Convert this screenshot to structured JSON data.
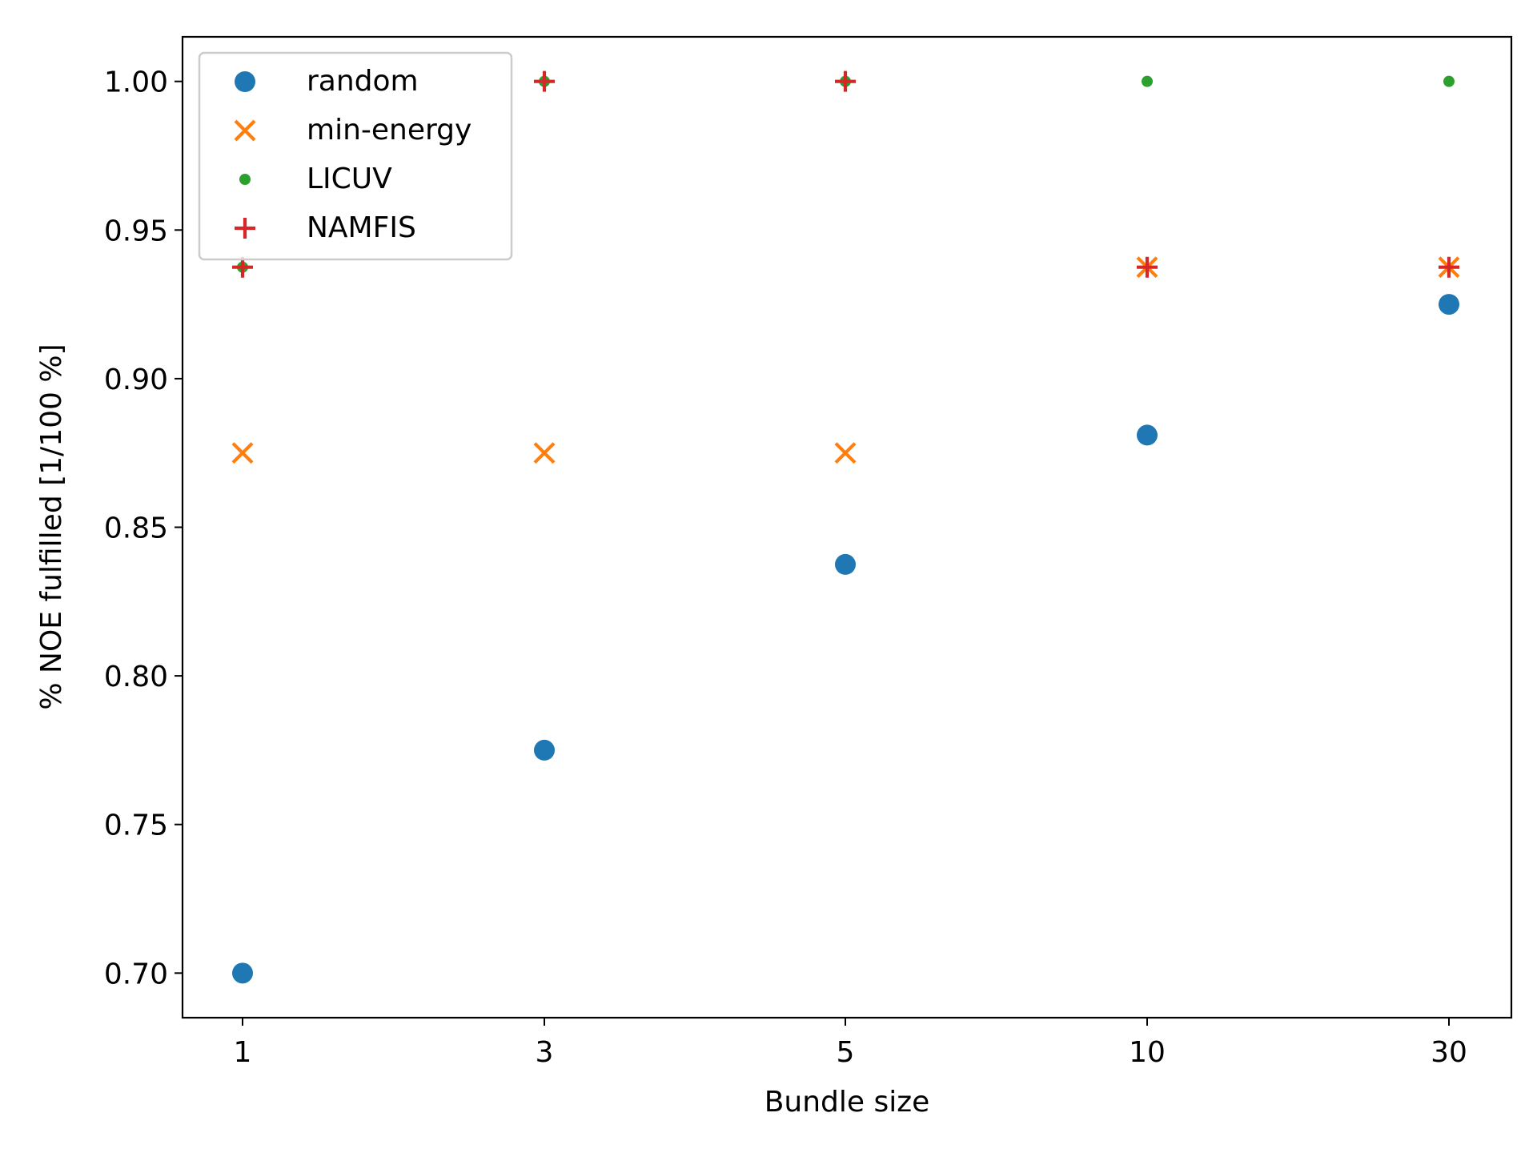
{
  "chart_data": {
    "type": "scatter",
    "xlabel": "Bundle size",
    "ylabel": "% NOE fulfilled [1/100 %]",
    "categories": [
      "1",
      "3",
      "5",
      "10",
      "30"
    ],
    "ylim": [
      0.685,
      1.015
    ],
    "yticks": [
      0.7,
      0.75,
      0.8,
      0.85,
      0.9,
      0.95,
      1.0
    ],
    "ytick_labels": [
      "0.70",
      "0.75",
      "0.80",
      "0.85",
      "0.90",
      "0.95",
      "1.00"
    ],
    "grid": false,
    "legend_position": "top-left",
    "series": [
      {
        "name": "random",
        "marker": "circle",
        "color": "#1f77b4",
        "values": [
          0.7,
          0.775,
          0.8375,
          0.881,
          0.925
        ]
      },
      {
        "name": "min-energy",
        "marker": "x",
        "color": "#ff7f0e",
        "values": [
          0.875,
          0.875,
          0.875,
          0.9375,
          0.9375
        ]
      },
      {
        "name": "LICUV",
        "marker": "small-dot",
        "color": "#2ca02c",
        "values": [
          0.9375,
          1.0,
          1.0,
          1.0,
          1.0
        ]
      },
      {
        "name": "NAMFIS",
        "marker": "plus",
        "color": "#d62728",
        "values": [
          0.9375,
          1.0,
          1.0,
          0.9375,
          0.9375
        ]
      }
    ]
  }
}
